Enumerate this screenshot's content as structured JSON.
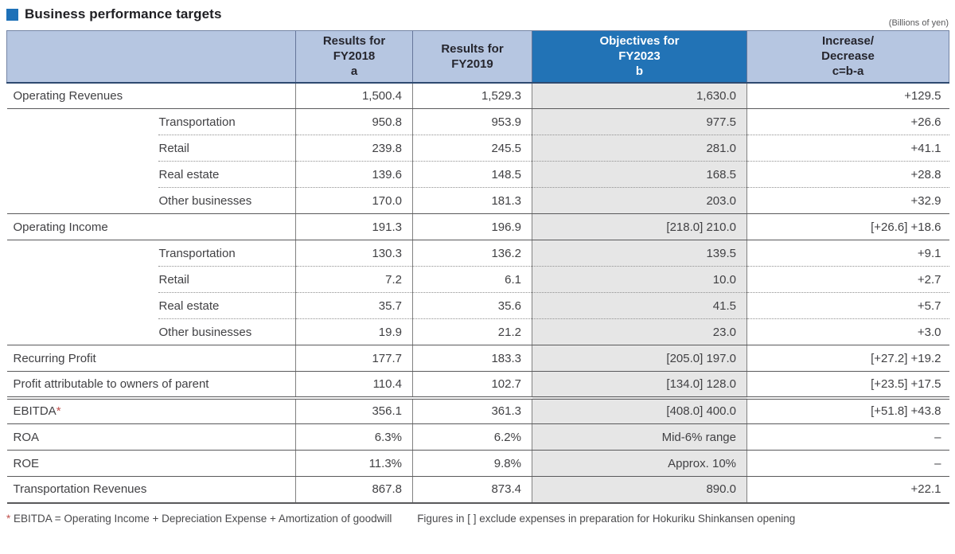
{
  "page": {
    "title": "Business performance targets",
    "unit_note": "(Billions of yen)"
  },
  "colors": {
    "accent_square": "#1e71b8",
    "header_light_blue": "#b6c6e1",
    "header_dark_blue": "#2273b6",
    "header_bottom_line": "#2e4a70",
    "objectives_column_gray": "#e6e6e6",
    "footnote_asterisk_red": "#c0504d"
  },
  "table": {
    "header": {
      "row_label_cell": "",
      "columns": [
        {
          "id": "fy2018",
          "lines": [
            "Results for",
            "FY2018",
            "a"
          ],
          "style": "light"
        },
        {
          "id": "fy2019",
          "lines": [
            "Results for",
            "FY2019"
          ],
          "style": "light"
        },
        {
          "id": "fy2023",
          "lines": [
            "Objectives for",
            "FY2023",
            "b"
          ],
          "style": "dark"
        },
        {
          "id": "diff",
          "lines": [
            "Increase/",
            "Decrease",
            "c=b-a"
          ],
          "style": "light"
        }
      ]
    },
    "rows": [
      {
        "label": "Operating Revenues",
        "indent": false,
        "values": [
          "1,500.4",
          "1,529.3",
          "1,630.0",
          "+129.5"
        ],
        "sep": "solid"
      },
      {
        "label": "Transportation",
        "indent": true,
        "group_rowspan": 4,
        "values": [
          "950.8",
          "953.9",
          "977.5",
          "+26.6"
        ],
        "sep": "dashed"
      },
      {
        "label": "Retail",
        "indent": true,
        "values": [
          "239.8",
          "245.5",
          "281.0",
          "+41.1"
        ],
        "sep": "dashed"
      },
      {
        "label": "Real estate",
        "indent": true,
        "values": [
          "139.6",
          "148.5",
          "168.5",
          "+28.8"
        ],
        "sep": "dashed"
      },
      {
        "label": "Other businesses",
        "indent": true,
        "values": [
          "170.0",
          "181.3",
          "203.0",
          "+32.9"
        ],
        "sep": "solid"
      },
      {
        "label": "Operating Income",
        "indent": false,
        "values": [
          "191.3",
          "196.9",
          "[218.0] 210.0",
          "[+26.6] +18.6"
        ],
        "sep": "solid"
      },
      {
        "label": "Transportation",
        "indent": true,
        "group_rowspan": 4,
        "values": [
          "130.3",
          "136.2",
          "139.5",
          "+9.1"
        ],
        "sep": "dashed"
      },
      {
        "label": "Retail",
        "indent": true,
        "values": [
          "7.2",
          "6.1",
          "10.0",
          "+2.7"
        ],
        "sep": "dashed"
      },
      {
        "label": "Real estate",
        "indent": true,
        "values": [
          "35.7",
          "35.6",
          "41.5",
          "+5.7"
        ],
        "sep": "dashed"
      },
      {
        "label": "Other businesses",
        "indent": true,
        "values": [
          "19.9",
          "21.2",
          "23.0",
          "+3.0"
        ],
        "sep": "solid"
      },
      {
        "label": "Recurring Profit",
        "indent": false,
        "values": [
          "177.7",
          "183.3",
          "[205.0] 197.0",
          "[+27.2] +19.2"
        ],
        "sep": "solid"
      },
      {
        "label": "Profit attributable to owners of parent",
        "indent": false,
        "values": [
          "110.4",
          "102.7",
          "[134.0] 128.0",
          "[+23.5] +17.5"
        ],
        "sep": "double"
      },
      {
        "label": "EBITDA",
        "label_suffix": "*",
        "indent": false,
        "values": [
          "356.1",
          "361.3",
          "[408.0] 400.0",
          "[+51.8] +43.8"
        ],
        "sep": "solid"
      },
      {
        "label": "ROA",
        "indent": false,
        "values": [
          "6.3%",
          "6.2%",
          "Mid-6% range",
          "–"
        ],
        "sep": "solid"
      },
      {
        "label": "ROE",
        "indent": false,
        "values": [
          "11.3%",
          "9.8%",
          "Approx. 10%",
          "–"
        ],
        "sep": "solid"
      },
      {
        "label": "Transportation Revenues",
        "indent": false,
        "values": [
          "867.8",
          "873.4",
          "890.0",
          "+22.1"
        ],
        "sep": "bottom"
      }
    ]
  },
  "footnote": {
    "asterisk": "*",
    "text1": "EBITDA = Operating Income + Depreciation Expense + Amortization of goodwill",
    "text2": "Figures in [  ] exclude expenses in preparation for Hokuriku Shinkansen opening"
  }
}
